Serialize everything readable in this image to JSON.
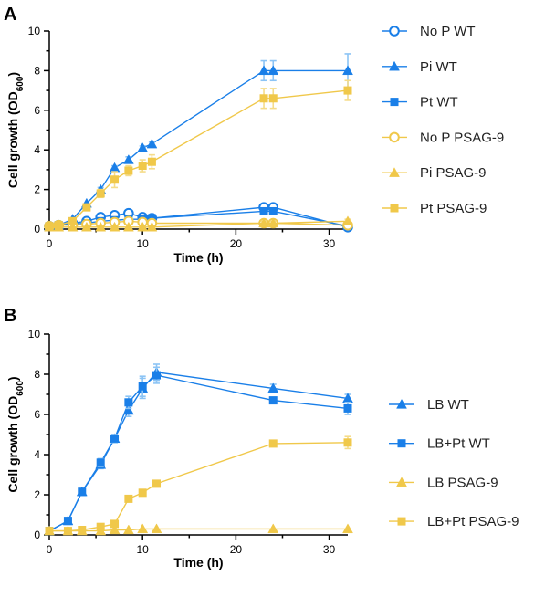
{
  "colors": {
    "wt": "#1a7fe8",
    "wt_err": "#8cc4f5",
    "psag": "#f0c84a",
    "psag_err": "#f5dc8a"
  },
  "chart_data": [
    {
      "panel": "A",
      "type": "line",
      "xlabel": "Time (h)",
      "ylabel_main": "Cell growth (OD",
      "ylabel_sub": "600",
      "ylabel_close": ")",
      "xlim": [
        0,
        32
      ],
      "ylim": [
        0,
        10
      ],
      "xticks": [
        "0",
        "10",
        "20",
        "30"
      ],
      "yticks": [
        "0",
        "2",
        "4",
        "6",
        "8",
        "10"
      ],
      "grid": false,
      "legend": "right",
      "series": [
        {
          "name": "No P WT",
          "color": "wt",
          "marker": "circle-open",
          "x": [
            0,
            1,
            2.5,
            4,
            5.5,
            7,
            8.5,
            10,
            11,
            23,
            24,
            32
          ],
          "y": [
            0.15,
            0.2,
            0.3,
            0.4,
            0.6,
            0.7,
            0.8,
            0.6,
            0.55,
            1.1,
            1.1,
            0.1
          ],
          "err": [
            0,
            0,
            0,
            0,
            0.1,
            0.1,
            0.15,
            0.1,
            0.1,
            0.1,
            0.1,
            0
          ]
        },
        {
          "name": "Pi WT",
          "color": "wt",
          "marker": "triangle",
          "x": [
            0,
            1,
            2.5,
            4,
            5.5,
            7,
            8.5,
            10,
            11,
            23,
            24,
            32
          ],
          "y": [
            0.15,
            0.2,
            0.5,
            1.3,
            2.0,
            3.1,
            3.5,
            4.1,
            4.3,
            8.0,
            8.0,
            8.0
          ],
          "err": [
            0,
            0,
            0,
            0,
            0.1,
            0.1,
            0.15,
            0.1,
            0.1,
            0.5,
            0.5,
            0.85
          ]
        },
        {
          "name": "Pt WT",
          "color": "wt",
          "marker": "square",
          "x": [
            0,
            1,
            2.5,
            4,
            5.5,
            7,
            8.5,
            10,
            11,
            23,
            24,
            32
          ],
          "y": [
            0.15,
            0.2,
            0.25,
            0.3,
            0.4,
            0.45,
            0.5,
            0.5,
            0.55,
            0.9,
            0.9,
            0.15
          ],
          "err": [
            0,
            0,
            0,
            0,
            0,
            0,
            0,
            0,
            0,
            0,
            0,
            0
          ]
        },
        {
          "name": "No P PSAG-9",
          "color": "psag",
          "marker": "circle-open",
          "x": [
            0,
            1,
            2.5,
            4,
            5.5,
            7,
            8.5,
            10,
            11,
            23,
            24,
            32
          ],
          "y": [
            0.15,
            0.2,
            0.2,
            0.25,
            0.3,
            0.35,
            0.4,
            0.35,
            0.3,
            0.3,
            0.3,
            0.2
          ],
          "err": [
            0,
            0,
            0,
            0,
            0,
            0,
            0,
            0,
            0,
            0,
            0,
            0
          ]
        },
        {
          "name": "Pi PSAG-9",
          "color": "psag",
          "marker": "triangle",
          "x": [
            0,
            1,
            2.5,
            4,
            5.5,
            7,
            8.5,
            10,
            11,
            23,
            24,
            32
          ],
          "y": [
            0.1,
            0.1,
            0.1,
            0.1,
            0.1,
            0.1,
            0.1,
            0.1,
            0.1,
            0.3,
            0.3,
            0.4
          ],
          "err": [
            0,
            0,
            0,
            0,
            0,
            0,
            0,
            0,
            0,
            0.1,
            0.1,
            0.1
          ]
        },
        {
          "name": "Pt PSAG-9",
          "color": "psag",
          "marker": "square",
          "x": [
            0,
            1,
            2.5,
            4,
            5.5,
            7,
            8.5,
            10,
            11,
            23,
            24,
            32
          ],
          "y": [
            0.15,
            0.2,
            0.4,
            1.1,
            1.8,
            2.5,
            2.95,
            3.2,
            3.4,
            6.6,
            6.6,
            7.0
          ],
          "err": [
            0,
            0,
            0,
            0,
            0.2,
            0.4,
            0.25,
            0.3,
            0.35,
            0.5,
            0.5,
            0.5
          ]
        }
      ]
    },
    {
      "panel": "B",
      "type": "line",
      "xlabel": "Time (h)",
      "ylabel_main": "Cell growth (OD",
      "ylabel_sub": "600",
      "ylabel_close": ")",
      "xlim": [
        0,
        32
      ],
      "ylim": [
        0,
        10
      ],
      "xticks": [
        "0",
        "10",
        "20",
        "30"
      ],
      "yticks": [
        "0",
        "2",
        "4",
        "6",
        "8",
        "10"
      ],
      "grid": false,
      "legend": "right",
      "series": [
        {
          "name": "LB WT",
          "color": "wt",
          "marker": "triangle",
          "x": [
            0,
            2,
            3.5,
            5.5,
            7,
            8.5,
            10,
            11.5,
            24,
            32
          ],
          "y": [
            0.2,
            0.7,
            2.15,
            3.5,
            4.8,
            6.2,
            7.3,
            8.1,
            7.3,
            6.8
          ],
          "err": [
            0,
            0,
            0,
            0.2,
            0.2,
            0.3,
            0.5,
            0.4,
            0.2,
            0.2
          ]
        },
        {
          "name": "LB+Pt WT",
          "color": "wt",
          "marker": "square",
          "x": [
            0,
            2,
            3.5,
            5.5,
            7,
            8.5,
            10,
            11.5,
            24,
            32
          ],
          "y": [
            0.2,
            0.7,
            2.15,
            3.6,
            4.8,
            6.6,
            7.4,
            7.95,
            6.7,
            6.3
          ],
          "err": [
            0,
            0,
            0,
            0.2,
            0.2,
            0.3,
            0.5,
            0.4,
            0.15,
            0.3
          ]
        },
        {
          "name": "LB PSAG-9",
          "color": "psag",
          "marker": "triangle",
          "x": [
            0,
            2,
            3.5,
            5.5,
            7,
            8.5,
            10,
            11.5,
            24,
            32
          ],
          "y": [
            0.2,
            0.2,
            0.2,
            0.2,
            0.25,
            0.25,
            0.3,
            0.3,
            0.3,
            0.3
          ],
          "err": [
            0,
            0,
            0,
            0,
            0,
            0,
            0,
            0,
            0,
            0
          ]
        },
        {
          "name": "LB+Pt PSAG-9",
          "color": "psag",
          "marker": "square",
          "x": [
            0,
            2,
            3.5,
            5.5,
            7,
            8.5,
            10,
            11.5,
            24,
            32
          ],
          "y": [
            0.2,
            0.2,
            0.25,
            0.4,
            0.55,
            1.8,
            2.1,
            2.55,
            4.55,
            4.6
          ],
          "err": [
            0,
            0,
            0,
            0,
            0,
            0,
            0,
            0,
            0.15,
            0.3
          ]
        }
      ]
    }
  ]
}
